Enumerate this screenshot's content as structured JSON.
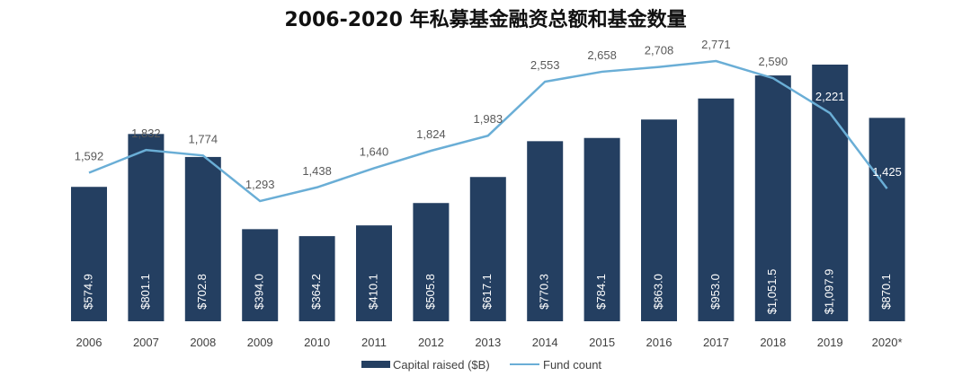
{
  "chart_data": {
    "type": "bar",
    "title": "2006-2020 年私募基金融资总额和基金数量",
    "categories": [
      "2006",
      "2007",
      "2008",
      "2009",
      "2010",
      "2011",
      "2012",
      "2013",
      "2014",
      "2015",
      "2016",
      "2017",
      "2018",
      "2019",
      "2020*"
    ],
    "series": [
      {
        "name": "Capital raised ($B)",
        "type": "bar",
        "color": "#243f61",
        "values": [
          574.9,
          801.1,
          702.8,
          394.0,
          364.2,
          410.1,
          505.8,
          617.1,
          770.3,
          784.1,
          863.0,
          953.0,
          1051.5,
          1097.9,
          870.1
        ],
        "labels": [
          "$574.9",
          "$801.1",
          "$702.8",
          "$394.0",
          "$364.2",
          "$410.1",
          "$505.8",
          "$617.1",
          "$770.3",
          "$784.1",
          "$863.0",
          "$953.0",
          "$1,051.5",
          "$1,097.9",
          "$870.1"
        ]
      },
      {
        "name": "Fund count",
        "type": "line",
        "color": "#6aaed6",
        "values": [
          1592,
          1832,
          1774,
          1293,
          1438,
          1640,
          1824,
          1983,
          2553,
          2658,
          2708,
          2771,
          2590,
          2221,
          1425
        ],
        "labels": [
          "1,592",
          "1,832",
          "1,774",
          "1,293",
          "1,438",
          "1,640",
          "1,824",
          "1,983",
          "2,553",
          "2,658",
          "2,708",
          "2,771",
          "2,590",
          "2,221",
          "1,425"
        ]
      }
    ],
    "xlabel": "",
    "ylabel": "",
    "grid": false,
    "legend": "bottom-center"
  }
}
